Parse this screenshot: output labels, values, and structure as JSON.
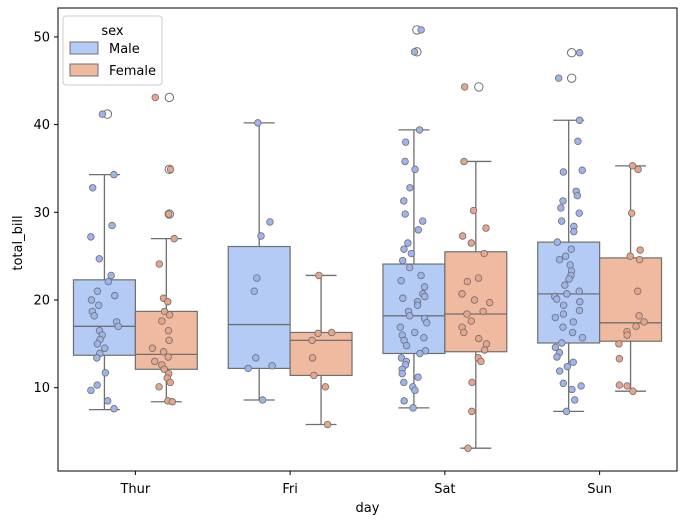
{
  "chart_data": {
    "type": "box",
    "title": "",
    "xlabel": "day",
    "ylabel": "total_bill",
    "categories": [
      "Thur",
      "Fri",
      "Sat",
      "Sun"
    ],
    "ylim": [
      0.5,
      53.3
    ],
    "yticks": [
      10,
      20,
      30,
      40,
      50
    ],
    "grid": false,
    "legend": {
      "title": "sex",
      "position": "top-left",
      "entries": [
        "Male",
        "Female"
      ]
    },
    "colors": {
      "Male": "#b3cbf5",
      "Female": "#efbaa0",
      "Male_point": "#9db5ee",
      "Female_point": "#e8a58a",
      "box_edge": "#6f6f6f",
      "axes": "#000000"
    },
    "series": [
      {
        "name": "Male",
        "boxes": [
          {
            "category": "Thur",
            "whisker_low": 7.5,
            "q1": 13.7,
            "median": 17.0,
            "q3": 22.3,
            "whisker_high": 34.3,
            "outliers": [
              41.2
            ]
          },
          {
            "category": "Fri",
            "whisker_low": 8.6,
            "q1": 12.2,
            "median": 17.2,
            "q3": 26.1,
            "whisker_high": 40.2,
            "outliers": []
          },
          {
            "category": "Sat",
            "whisker_low": 7.7,
            "q1": 13.9,
            "median": 18.2,
            "q3": 24.1,
            "whisker_high": 39.4,
            "outliers": [
              48.3,
              50.8
            ]
          },
          {
            "category": "Sun",
            "whisker_low": 7.3,
            "q1": 15.1,
            "median": 20.7,
            "q3": 26.6,
            "whisker_high": 40.5,
            "outliers": [
              45.3,
              48.2
            ]
          }
        ],
        "points": [
          [
            41.2,
            34.3,
            32.8,
            28.5,
            27.2,
            24.7,
            22.8,
            22.1,
            21.0,
            20.5,
            20.0,
            19.4,
            18.7,
            18.2,
            17.5,
            17.0,
            16.5,
            16.0,
            15.5,
            15.0,
            14.5,
            13.9,
            13.4,
            11.7,
            10.3,
            9.7,
            8.5,
            7.6
          ],
          [
            40.2,
            28.9,
            27.3,
            22.5,
            21.0,
            13.4,
            12.5,
            12.2,
            8.6
          ],
          [
            50.8,
            48.3,
            39.4,
            38.0,
            35.8,
            34.9,
            32.8,
            31.3,
            29.8,
            29.0,
            28.0,
            26.5,
            25.8,
            25.3,
            24.5,
            23.7,
            22.8,
            22.2,
            21.5,
            20.7,
            20.4,
            20.2,
            19.8,
            19.4,
            18.7,
            18.2,
            17.9,
            17.4,
            16.9,
            16.3,
            16.0,
            15.7,
            15.4,
            14.8,
            14.2,
            13.9,
            13.4,
            13.0,
            12.6,
            12.1,
            11.6,
            11.2,
            10.6,
            10.1,
            9.7,
            8.5,
            7.7
          ],
          [
            48.2,
            45.3,
            40.5,
            38.1,
            34.8,
            34.6,
            32.4,
            31.9,
            31.3,
            30.5,
            29.9,
            29.0,
            28.4,
            27.8,
            26.6,
            25.8,
            25.0,
            24.6,
            24.0,
            23.3,
            22.8,
            22.4,
            21.7,
            21.0,
            20.7,
            20.4,
            20.1,
            19.8,
            19.4,
            18.8,
            18.4,
            18.0,
            17.5,
            16.9,
            16.3,
            15.7,
            15.1,
            14.6,
            14.0,
            13.5,
            12.9,
            12.4,
            11.9,
            10.5,
            10.2,
            9.8,
            8.6,
            7.3
          ]
        ]
      },
      {
        "name": "Female",
        "boxes": [
          {
            "category": "Thur",
            "whisker_low": 8.4,
            "q1": 12.1,
            "median": 13.8,
            "q3": 18.7,
            "whisker_high": 27.0,
            "outliers": [
              29.8,
              34.9,
              43.1
            ]
          },
          {
            "category": "Fri",
            "whisker_low": 5.8,
            "q1": 11.4,
            "median": 15.4,
            "q3": 16.3,
            "whisker_high": 22.8,
            "outliers": []
          },
          {
            "category": "Sat",
            "whisker_low": 3.1,
            "q1": 14.1,
            "median": 18.4,
            "q3": 25.5,
            "whisker_high": 35.8,
            "outliers": [
              44.3
            ]
          },
          {
            "category": "Sun",
            "whisker_low": 9.6,
            "q1": 15.3,
            "median": 17.4,
            "q3": 24.8,
            "whisker_high": 35.3,
            "outliers": []
          }
        ],
        "points": [
          [
            43.1,
            34.9,
            29.8,
            27.0,
            24.1,
            20.2,
            19.8,
            18.7,
            18.3,
            17.6,
            16.5,
            15.4,
            14.5,
            14.1,
            13.5,
            13.0,
            12.6,
            12.1,
            11.6,
            11.1,
            10.6,
            10.1,
            8.5,
            8.4
          ],
          [
            22.8,
            16.3,
            16.2,
            15.4,
            13.4,
            11.4,
            10.1,
            5.8
          ],
          [
            44.3,
            35.8,
            30.2,
            28.2,
            27.3,
            26.5,
            25.3,
            22.5,
            22.1,
            20.7,
            20.0,
            19.7,
            18.7,
            18.4,
            17.6,
            16.9,
            16.3,
            15.6,
            15.0,
            14.3,
            13.4,
            13.0,
            10.6,
            7.3,
            3.1
          ],
          [
            35.3,
            34.9,
            29.9,
            25.7,
            25.0,
            24.6,
            21.0,
            18.2,
            17.5,
            17.0,
            16.4,
            16.0,
            15.0,
            13.3,
            10.3,
            10.2,
            9.6
          ]
        ]
      }
    ]
  }
}
